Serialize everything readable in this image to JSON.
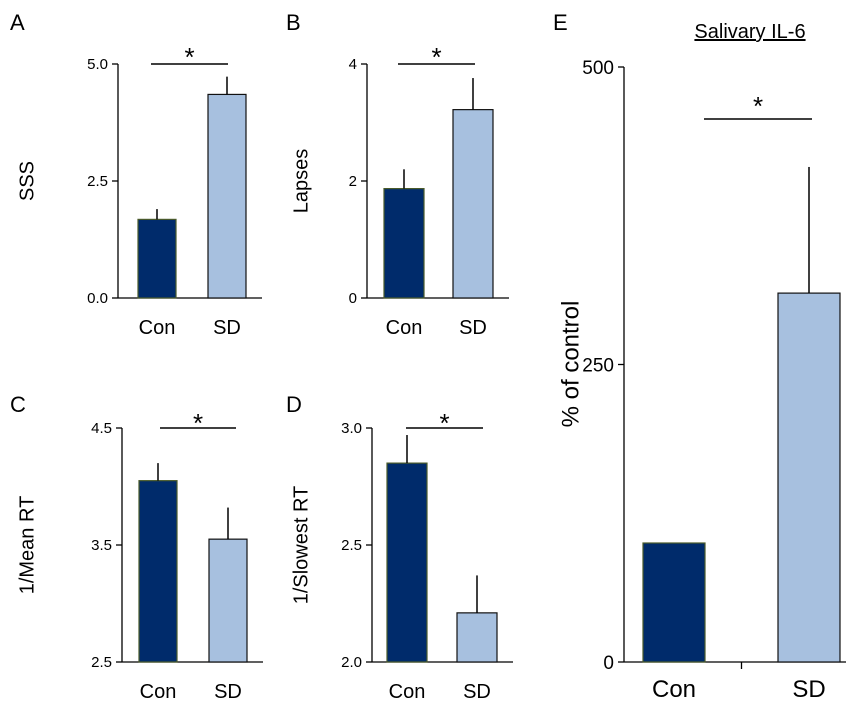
{
  "chart_data": [
    {
      "panel": "A",
      "type": "bar",
      "categories": [
        "Con",
        "SD"
      ],
      "values": [
        1.68,
        4.35
      ],
      "errors": [
        0.22,
        0.38
      ],
      "ylabel": "SSS",
      "ylim": [
        0,
        5
      ],
      "yticks": [
        "0.0",
        "2.5",
        "5.0"
      ],
      "significance": "*",
      "colors": [
        "#002b6b",
        "#a7c0df"
      ]
    },
    {
      "panel": "B",
      "type": "bar",
      "categories": [
        "Con",
        "SD"
      ],
      "values": [
        1.87,
        3.22
      ],
      "errors": [
        0.33,
        0.54
      ],
      "ylabel": "Lapses",
      "ylim": [
        0,
        4
      ],
      "yticks": [
        "0",
        "2",
        "4"
      ],
      "significance": "*",
      "colors": [
        "#002b6b",
        "#a7c0df"
      ]
    },
    {
      "panel": "C",
      "type": "bar",
      "categories": [
        "Con",
        "SD"
      ],
      "values": [
        4.05,
        3.55
      ],
      "errors": [
        0.15,
        0.27
      ],
      "ylabel": "1/Mean RT",
      "ylim": [
        2.5,
        4.5
      ],
      "yticks": [
        "2.5",
        "3.5",
        "4.5"
      ],
      "significance": "*",
      "colors": [
        "#002b6b",
        "#a7c0df"
      ]
    },
    {
      "panel": "D",
      "type": "bar",
      "categories": [
        "Con",
        "SD"
      ],
      "values": [
        2.85,
        2.21
      ],
      "errors": [
        0.12,
        0.16
      ],
      "ylabel": "1/Slowest RT",
      "ylim": [
        2.0,
        3.0
      ],
      "yticks": [
        "2.0",
        "2.5",
        "3.0"
      ],
      "significance": "*",
      "colors": [
        "#002b6b",
        "#a7c0df"
      ]
    },
    {
      "panel": "E",
      "type": "bar",
      "title": "Salivary IL-6",
      "categories": [
        "Con",
        "SD"
      ],
      "values": [
        100,
        310
      ],
      "errors": [
        0,
        106
      ],
      "ylabel": "% of control",
      "ylim": [
        0,
        500
      ],
      "yticks": [
        "0",
        "250",
        "500"
      ],
      "significance": "*",
      "colors": [
        "#002b6b",
        "#a7c0df"
      ]
    }
  ]
}
